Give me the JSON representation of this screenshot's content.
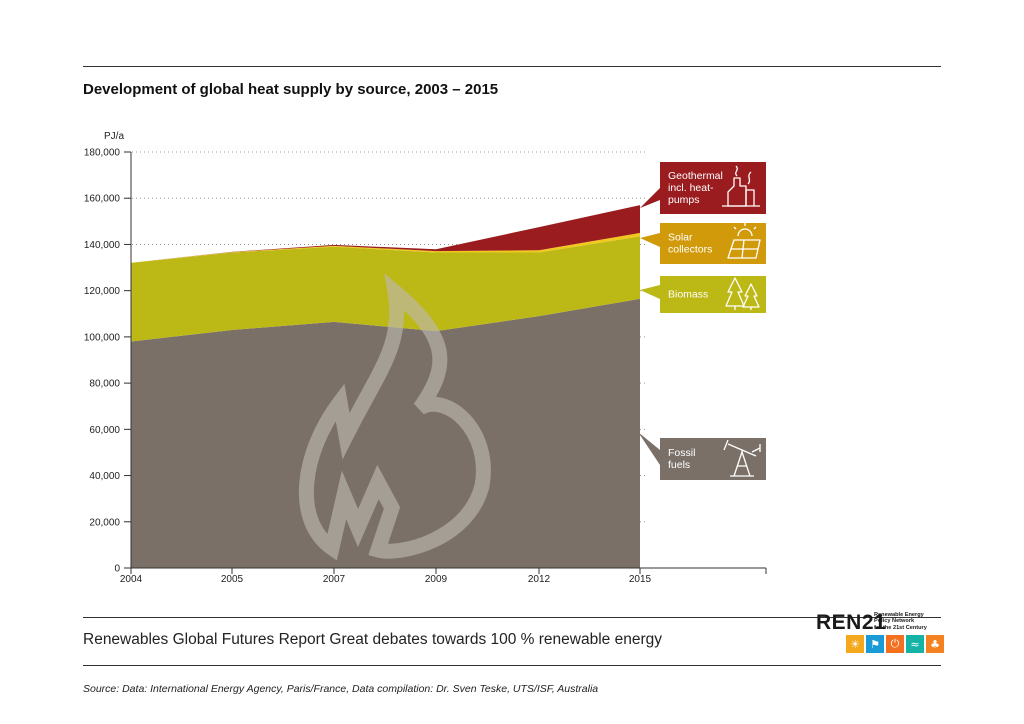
{
  "title": "Development of global heat supply by source, 2003 – 2015",
  "report_line": "Renewables Global Futures Report Great debates towards 100 % renewable energy",
  "source_line": "Source: Data: International Energy Agency, Paris/France, Data compilation: Dr. Sven Teske, UTS/ISF, Australia",
  "logo": {
    "word": "REN21",
    "tagline": [
      "Renewable Energy",
      "Policy Network",
      "for the 21st Century"
    ],
    "icons": [
      {
        "name": "sun-icon",
        "color": "#f4a81d"
      },
      {
        "name": "wind-icon",
        "color": "#1a9ad6"
      },
      {
        "name": "power-icon",
        "color": "#f37021"
      },
      {
        "name": "wave-icon",
        "color": "#14b3a6"
      },
      {
        "name": "leaf-icon",
        "color": "#f58220"
      }
    ]
  },
  "chart_data": {
    "type": "area",
    "stacked": true,
    "y_unit": "PJ/a",
    "x": [
      "2004",
      "2005",
      "2007",
      "2009",
      "2012",
      "2015"
    ],
    "ylim": [
      0,
      180000
    ],
    "yticks": [
      0,
      20000,
      40000,
      60000,
      80000,
      100000,
      120000,
      140000,
      160000,
      180000
    ],
    "ytick_labels": [
      "0",
      "20,000",
      "40,000",
      "60,000",
      "80,000",
      "100,000",
      "120,000",
      "140,000",
      "160,000",
      "180,000"
    ],
    "grid": "horizontal dotted",
    "series": [
      {
        "name": "Fossil fuels",
        "color": "#7a7068",
        "values": [
          98000,
          103000,
          106500,
          102500,
          109000,
          116500
        ]
      },
      {
        "name": "Biomass",
        "color": "#bcb816",
        "values": [
          34000,
          33500,
          32500,
          34000,
          27500,
          27000
        ]
      },
      {
        "name": "Solar collectors",
        "color": "#f0c81e",
        "values": [
          100,
          200,
          400,
          600,
          1000,
          1500
        ]
      },
      {
        "name": "Geothermal incl. heat-pumps",
        "color": "#9b1c1f",
        "values": [
          0,
          100,
          400,
          800,
          10000,
          12000
        ]
      }
    ],
    "legend": [
      {
        "series": "Geothermal incl. heat-pumps",
        "lines": [
          "Geothermal",
          "incl. heat-",
          "pumps"
        ],
        "color": "#9b1c1f",
        "icon": "geothermal-plant-icon"
      },
      {
        "series": "Solar collectors",
        "lines": [
          "Solar",
          "collectors"
        ],
        "color": "#d19a0b",
        "icon": "solar-panel-icon"
      },
      {
        "series": "Biomass",
        "lines": [
          "Biomass"
        ],
        "color": "#bcb816",
        "icon": "trees-icon"
      },
      {
        "series": "Fossil fuels",
        "lines": [
          "Fossil",
          "fuels"
        ],
        "color": "#7a7068",
        "icon": "oil-pump-icon"
      }
    ],
    "legend_position": "right"
  }
}
